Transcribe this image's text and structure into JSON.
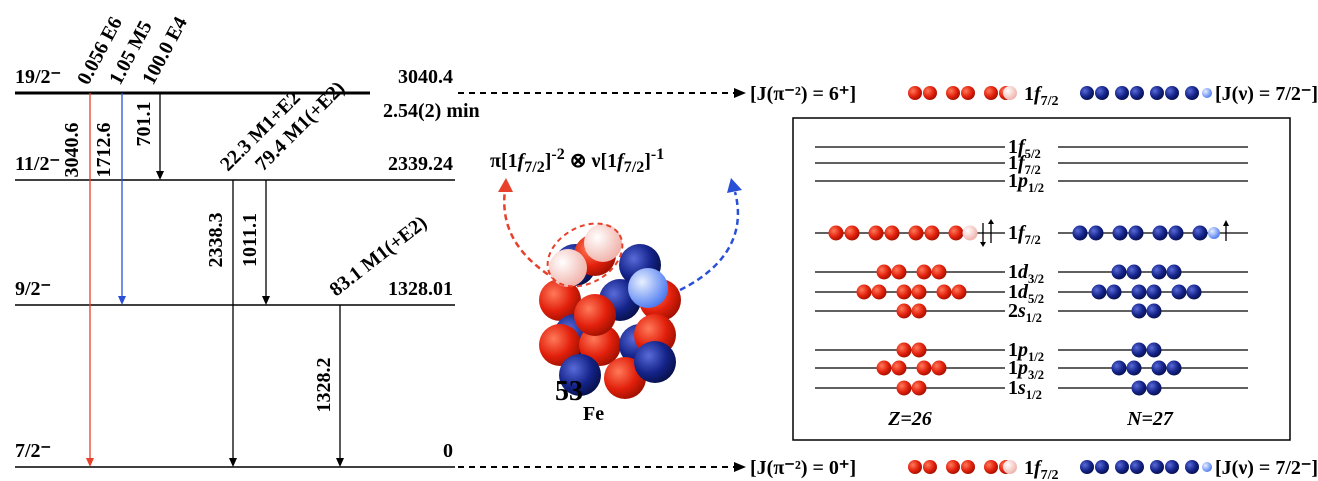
{
  "levels": [
    {
      "spin": "19/2⁻",
      "energy": "3040.4"
    },
    {
      "spin": "11/2⁻",
      "energy": "2339.24"
    },
    {
      "spin": "9/2⁻",
      "energy": "1328.01"
    },
    {
      "spin": "7/2⁻",
      "energy": "0"
    }
  ],
  "half_life": "2.54(2) min",
  "transitions": [
    {
      "energy": "3040.6",
      "label": "0.056 E6"
    },
    {
      "energy": "1712.6",
      "label": "1.05 M5"
    },
    {
      "energy": "701.1",
      "label": "100.0 E4"
    },
    {
      "energy": "2338.3",
      "label": "22.3 M1+E2"
    },
    {
      "energy": "1011.1",
      "label": "79.4 M1(+E2)"
    },
    {
      "energy": "1328.2",
      "label": "83.1 M1(+E2)"
    }
  ],
  "configuration": [
    "π[1",
    "f",
    "7/2",
    "]",
    "-2",
    " ⊗ ν[1",
    "f",
    "7/2",
    "]",
    "-1"
  ],
  "nucleus": {
    "mass": "53",
    "symbol": "Fe"
  },
  "states": [
    {
      "left": "[J(π⁻²) = 6⁺]",
      "orbital": {
        "n": "1",
        "l": "f",
        "j": "7/2"
      },
      "right": "[J(ν) = 7/2⁻]"
    },
    {
      "left": "[J(π⁻²) = 0⁺]",
      "orbital": {
        "n": "1",
        "l": "f",
        "j": "7/2"
      },
      "right": "[J(ν) = 7/2⁻]"
    }
  ],
  "shells": [
    {
      "n": "1",
      "l": "f",
      "j": "5/2"
    },
    {
      "n": "1",
      "l": "f",
      "j": "7/2"
    },
    {
      "n": "1",
      "l": "p",
      "j": "1/2"
    },
    {
      "n": "1",
      "l": "f",
      "j": "7/2"
    },
    {
      "n": "1",
      "l": "d",
      "j": "3/2"
    },
    {
      "n": "1",
      "l": "d",
      "j": "5/2"
    },
    {
      "n": "2",
      "l": "s",
      "j": "1/2"
    },
    {
      "n": "1",
      "l": "p",
      "j": "1/2"
    },
    {
      "n": "1",
      "l": "p",
      "j": "3/2"
    },
    {
      "n": "1",
      "l": "s",
      "j": "1/2"
    }
  ],
  "proton_label": "Z=26",
  "neutron_label": "N=27"
}
